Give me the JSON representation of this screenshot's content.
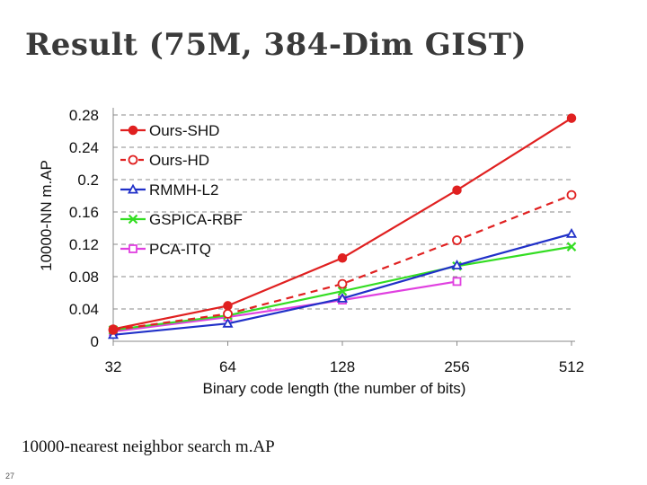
{
  "slide": {
    "title": "Result (75M, 384-Dim GIST)",
    "caption": "10000-nearest neighbor search m.AP",
    "page_number": "27"
  },
  "chart_data": {
    "type": "line",
    "categories": [
      "32",
      "64",
      "128",
      "256",
      "512"
    ],
    "xlabel": "Binary code length (the number of bits)",
    "ylabel": "10000-NN m.AP",
    "ylim": [
      0,
      0.28
    ],
    "yticks": [
      "0",
      "0.04",
      "0.08",
      "0.12",
      "0.16",
      "0.2",
      "0.24",
      "0.28"
    ],
    "ytick_values": [
      0,
      0.04,
      0.08,
      0.12,
      0.16,
      0.2,
      0.24,
      0.28
    ],
    "grid": "horizontal dashed",
    "legend_position": "top-left",
    "series": [
      {
        "name": "Ours-SHD",
        "values": [
          0.015,
          0.044,
          0.103,
          0.187,
          0.276
        ],
        "color": "#e02020",
        "marker": "filled-circle",
        "dash": false
      },
      {
        "name": "Ours-HD",
        "values": [
          0.014,
          0.034,
          0.071,
          0.125,
          0.181
        ],
        "color": "#e02020",
        "marker": "open-circle",
        "dash": true
      },
      {
        "name": "RMMH-L2",
        "values": [
          0.008,
          0.022,
          0.053,
          0.094,
          0.133
        ],
        "color": "#2030c8",
        "marker": "triangle",
        "dash": false
      },
      {
        "name": "GSPICA-RBF",
        "values": [
          0.014,
          0.032,
          0.062,
          0.093,
          0.117
        ],
        "color": "#33dd22",
        "marker": "x",
        "dash": false
      },
      {
        "name": "PCA-ITQ",
        "values": [
          0.012,
          0.03,
          0.051,
          0.074,
          null
        ],
        "color": "#e040e0",
        "marker": "square",
        "dash": false
      }
    ]
  }
}
